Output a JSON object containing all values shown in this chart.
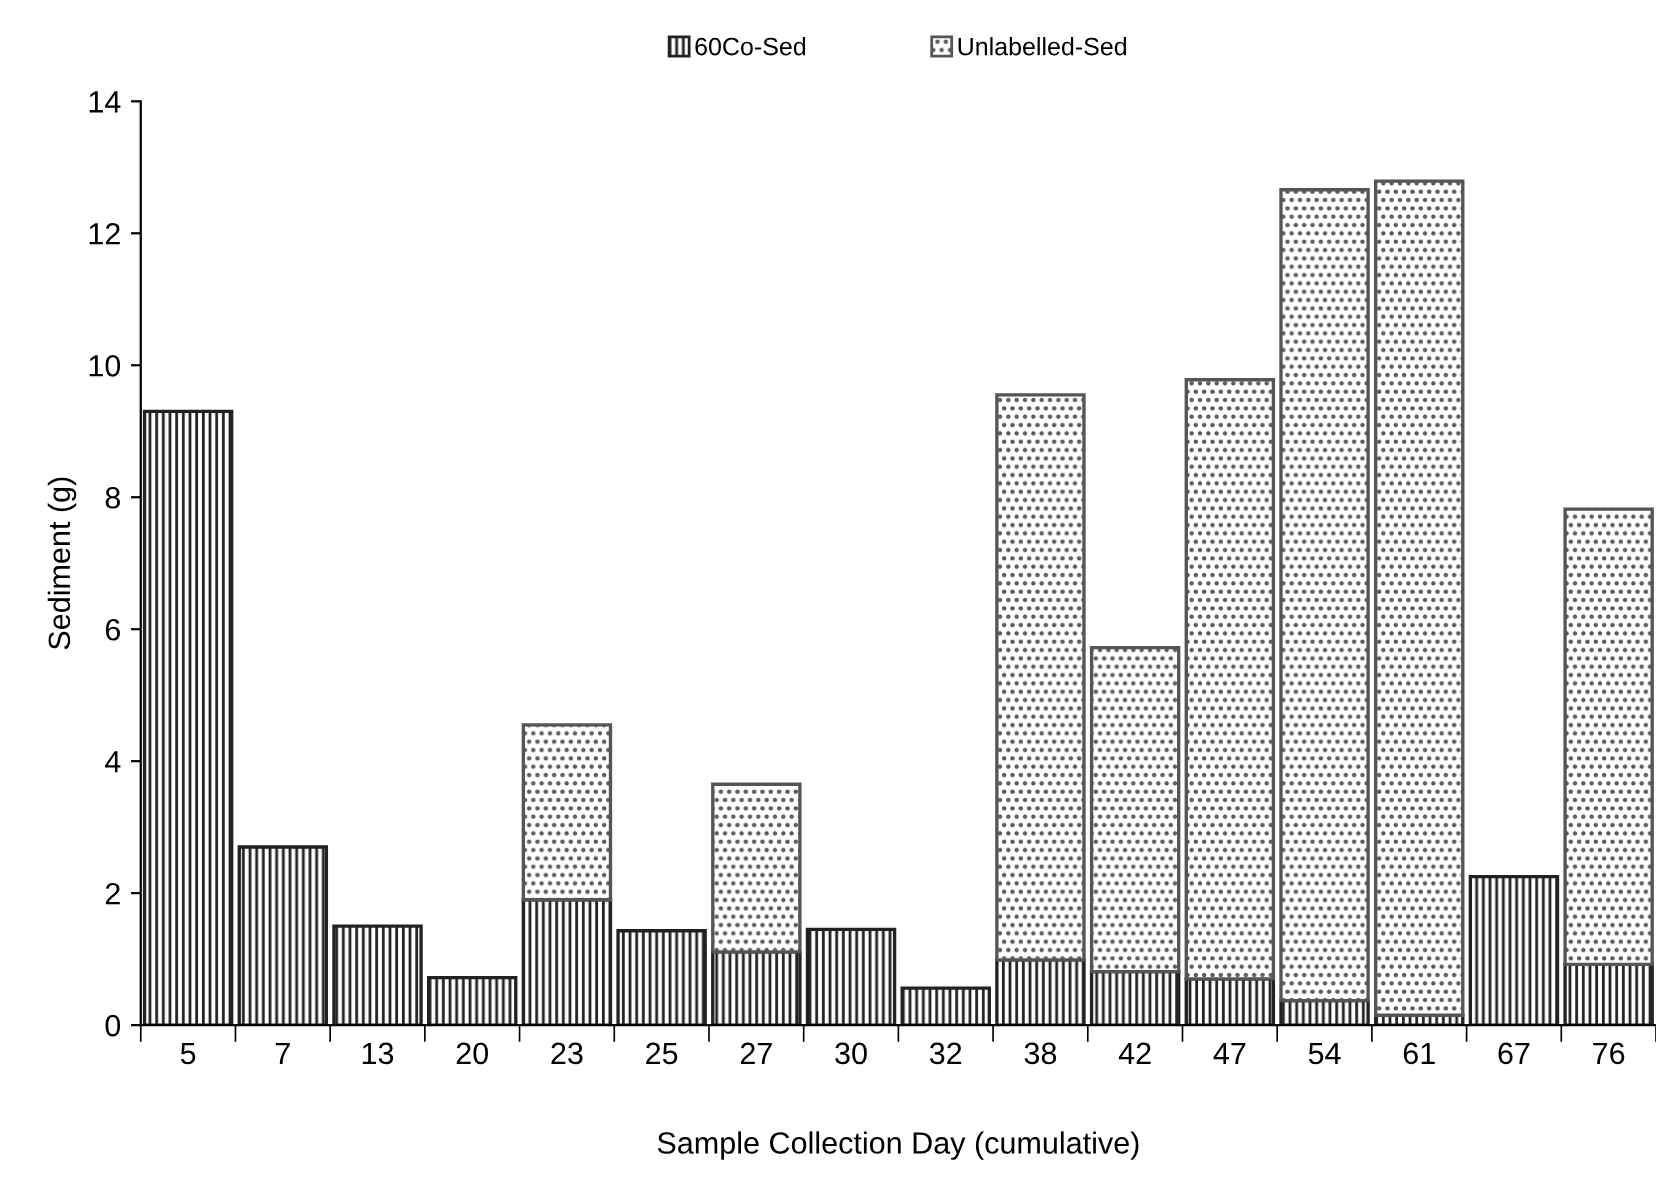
{
  "chart_data": {
    "type": "bar",
    "stacked": true,
    "xlabel": "Sample Collection Day (cumulative)",
    "ylabel": "Sediment (g)",
    "categories": [
      "5",
      "7",
      "13",
      "20",
      "23",
      "25",
      "27",
      "30",
      "32",
      "38",
      "42",
      "47",
      "54",
      "61",
      "67",
      "76"
    ],
    "series": [
      {
        "name": "60Co-Sed",
        "color": "#222222",
        "values": [
          9.3,
          2.7,
          1.5,
          0.72,
          1.9,
          1.43,
          1.11,
          1.45,
          0.56,
          0.99,
          0.81,
          0.7,
          0.37,
          0.15,
          2.25,
          0.92
        ]
      },
      {
        "name": "Unlabelled-Sed",
        "color": "#555555",
        "values": [
          null,
          null,
          null,
          null,
          2.65,
          null,
          2.54,
          null,
          null,
          8.56,
          4.91,
          9.08,
          12.29,
          12.64,
          null,
          6.9
        ]
      }
    ],
    "ylim": [
      0,
      14
    ],
    "yticks": [
      0,
      2,
      4,
      6,
      8,
      10,
      12,
      14
    ],
    "grid": false,
    "legend": "top"
  }
}
